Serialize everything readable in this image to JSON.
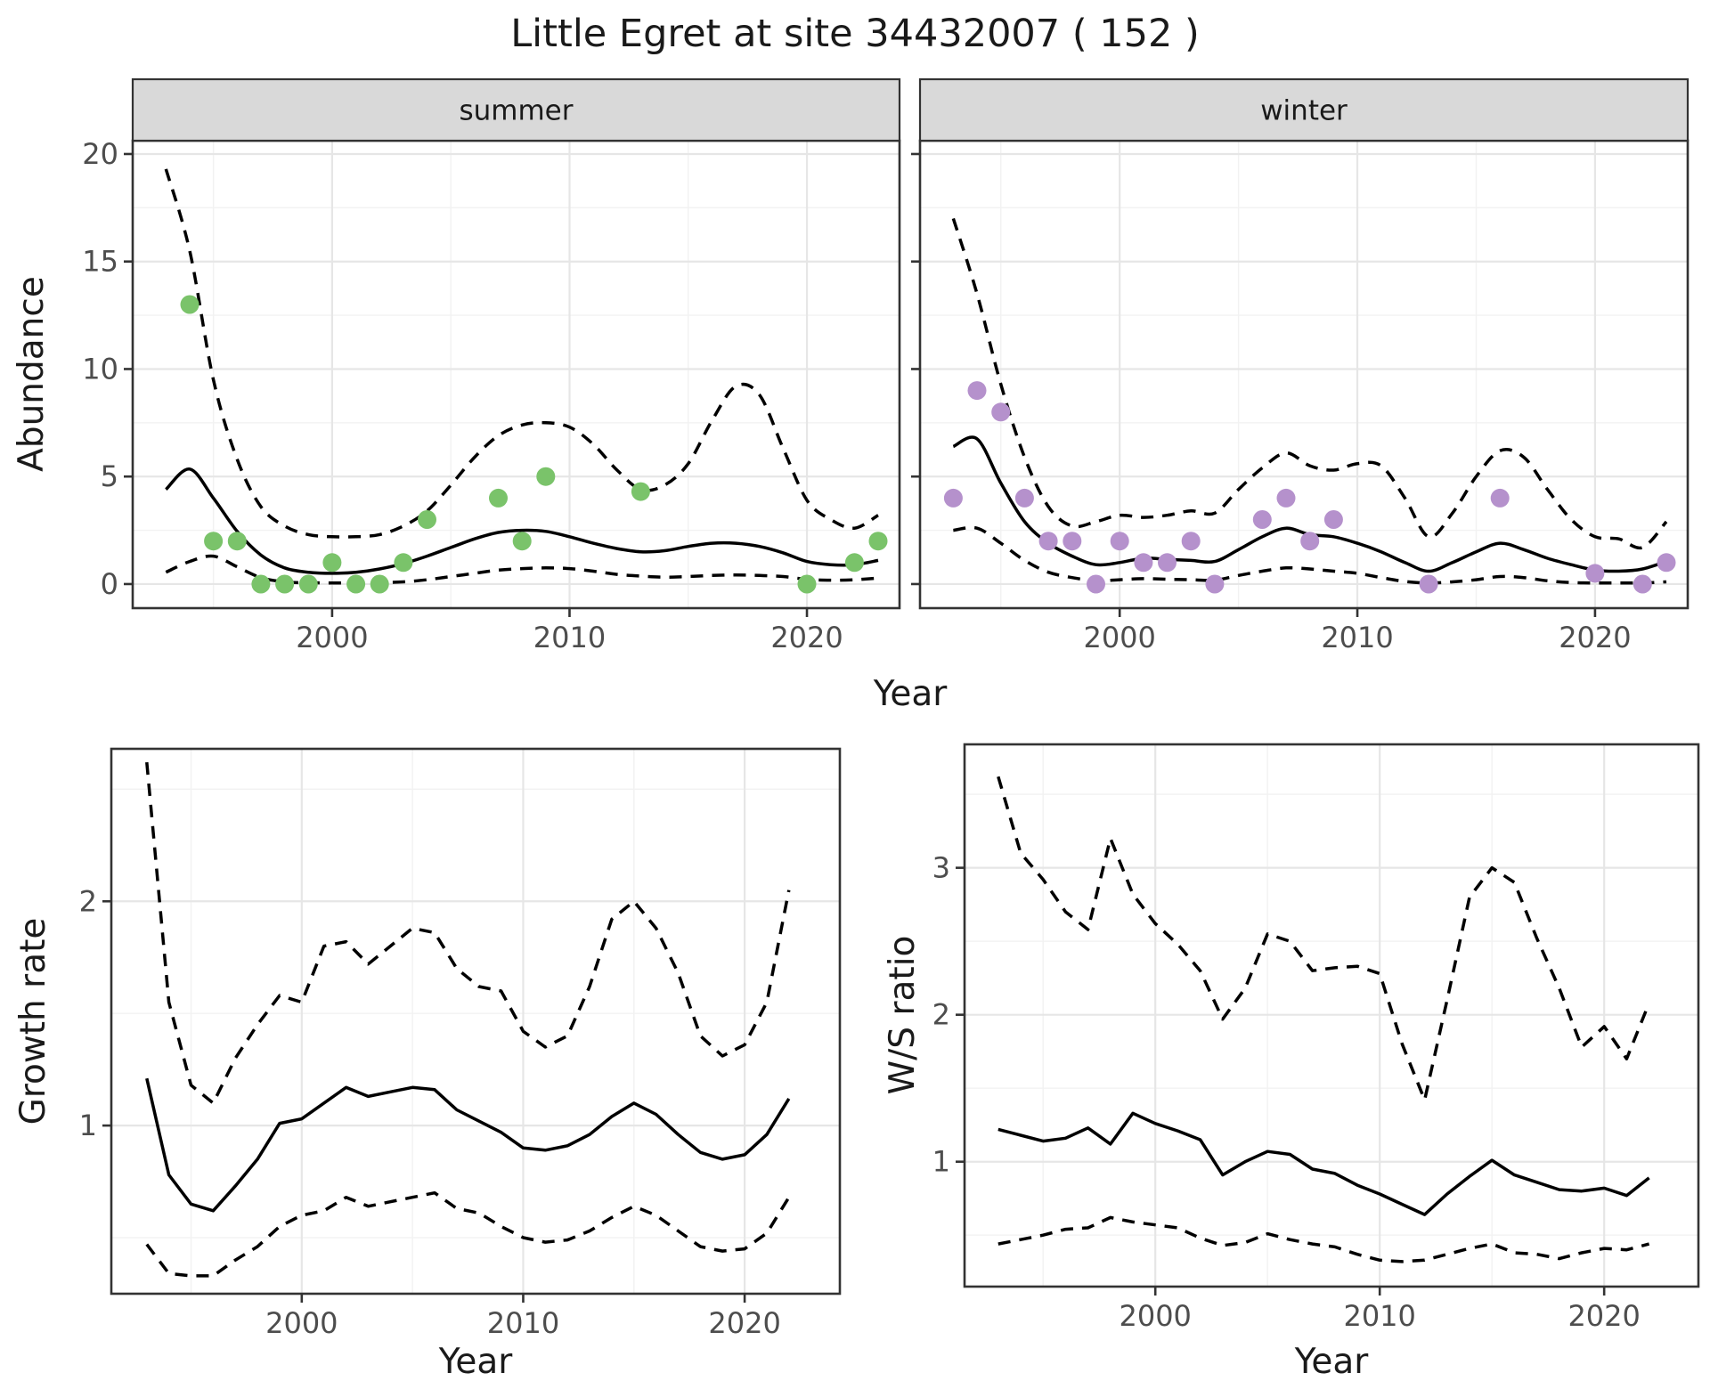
{
  "title": "Little Egret at site 34432007 ( 152 )",
  "figure_labels": {
    "x_top": "Year",
    "x_bottom_left": "Year",
    "x_bottom_right": "Year",
    "y_top": "Abundance",
    "y_bottom_left": "Growth rate",
    "y_bottom_right": "W/S ratio"
  },
  "colors": {
    "summer_point": "#7ac36a",
    "winter_point": "#b591cc",
    "line": "#000000",
    "strip_bg": "#d9d9d9",
    "strip_border": "#333333",
    "panel_border": "#333333",
    "panel_bg": "#ffffff",
    "grid_major": "#e6e6e6",
    "grid_minor": "#f2f2f2",
    "tick_mark": "#333333",
    "tick_label": "#4d4d4d",
    "text": "#1a1a1a"
  },
  "chart_data": [
    {
      "id": "abundance-summer",
      "type": "scatter",
      "panel": "summer",
      "facet_label": "summer",
      "xlabel": "Year",
      "ylabel": "Abundance",
      "xlim": [
        1991.6,
        2023.9
      ],
      "ylim": [
        -1.12,
        20.62
      ],
      "xticks": [
        2000,
        2010,
        2020
      ],
      "xticks_minor": [
        1995,
        2005,
        2015
      ],
      "yticks": [
        0,
        5,
        10,
        15,
        20
      ],
      "yticks_minor": [
        2.5,
        7.5,
        12.5,
        17.5
      ],
      "show_y_labels": true,
      "grid": true,
      "points": {
        "color_key": "summer_point",
        "x": [
          1994,
          1995,
          1996,
          1997,
          1998,
          1999,
          2000,
          2001,
          2002,
          2003,
          2004,
          2007,
          2008,
          2009,
          2013,
          2020,
          2022,
          2023
        ],
        "y": [
          13,
          2,
          2,
          0,
          0,
          0,
          1,
          0,
          0,
          1,
          3,
          4,
          2,
          5,
          4.3,
          0,
          1,
          2
        ]
      },
      "series": [
        {
          "name": "fit",
          "style": "solid",
          "smooth": true,
          "x": [
            1993,
            1994,
            1995,
            1996,
            1997,
            1998,
            1999,
            2000,
            2001,
            2002,
            2003,
            2004,
            2005,
            2006,
            2007,
            2008,
            2009,
            2010,
            2011,
            2012,
            2013,
            2014,
            2015,
            2016,
            2017,
            2018,
            2019,
            2020,
            2021,
            2022,
            2023
          ],
          "y": [
            4.4,
            5.35,
            4.0,
            2.45,
            1.35,
            0.75,
            0.55,
            0.5,
            0.55,
            0.7,
            0.95,
            1.3,
            1.7,
            2.1,
            2.4,
            2.5,
            2.45,
            2.2,
            1.9,
            1.65,
            1.5,
            1.55,
            1.75,
            1.9,
            1.9,
            1.75,
            1.45,
            1.05,
            0.9,
            0.9,
            1.1
          ]
        },
        {
          "name": "upper-ci",
          "style": "dashed",
          "smooth": true,
          "x": [
            1993,
            1994,
            1995,
            1996,
            1997,
            1998,
            1999,
            2000,
            2001,
            2002,
            2003,
            2004,
            2005,
            2006,
            2007,
            2008,
            2009,
            2010,
            2011,
            2012,
            2013,
            2014,
            2015,
            2016,
            2017,
            2018,
            2019,
            2020,
            2021,
            2022,
            2023
          ],
          "y": [
            19.3,
            15.5,
            9.5,
            5.8,
            3.6,
            2.7,
            2.3,
            2.2,
            2.2,
            2.3,
            2.7,
            3.4,
            4.6,
            5.9,
            6.9,
            7.4,
            7.5,
            7.3,
            6.5,
            5.3,
            4.4,
            4.6,
            5.6,
            7.6,
            9.2,
            8.8,
            6.3,
            3.9,
            3.0,
            2.6,
            3.2
          ]
        },
        {
          "name": "lower-ci",
          "style": "dashed",
          "smooth": true,
          "x": [
            1993,
            1994,
            1995,
            1996,
            1997,
            1998,
            1999,
            2000,
            2001,
            2002,
            2003,
            2004,
            2005,
            2006,
            2007,
            2008,
            2009,
            2010,
            2011,
            2012,
            2013,
            2014,
            2015,
            2016,
            2017,
            2018,
            2019,
            2020,
            2021,
            2022,
            2023
          ],
          "y": [
            0.55,
            1.05,
            1.3,
            0.8,
            0.3,
            0.1,
            0.06,
            0.05,
            0.05,
            0.07,
            0.1,
            0.2,
            0.35,
            0.5,
            0.65,
            0.72,
            0.75,
            0.72,
            0.6,
            0.45,
            0.37,
            0.32,
            0.35,
            0.4,
            0.42,
            0.4,
            0.35,
            0.22,
            0.18,
            0.2,
            0.28
          ]
        }
      ]
    },
    {
      "id": "abundance-winter",
      "type": "scatter",
      "panel": "winter",
      "facet_label": "winter",
      "xlabel": "Year",
      "ylabel": "Abundance",
      "xlim": [
        1991.6,
        2023.9
      ],
      "ylim": [
        -1.12,
        20.62
      ],
      "xticks": [
        2000,
        2010,
        2020
      ],
      "xticks_minor": [
        1995,
        2005,
        2015
      ],
      "yticks": [
        0,
        5,
        10,
        15,
        20
      ],
      "yticks_minor": [
        2.5,
        7.5,
        12.5,
        17.5
      ],
      "show_y_labels": false,
      "grid": true,
      "points": {
        "color_key": "winter_point",
        "x": [
          1993,
          1994,
          1995,
          1996,
          1997,
          1998,
          1999,
          2000,
          2001,
          2002,
          2003,
          2004,
          2006,
          2007,
          2008,
          2009,
          2013,
          2016,
          2020,
          2022,
          2023
        ],
        "y": [
          4,
          9,
          8,
          4,
          2,
          2,
          0,
          2,
          1,
          1,
          2,
          0,
          3,
          4,
          2,
          3,
          0,
          4,
          0.5,
          0,
          1
        ]
      },
      "series": [
        {
          "name": "fit",
          "style": "solid",
          "smooth": true,
          "x": [
            1993,
            1994,
            1995,
            1996,
            1997,
            1998,
            1999,
            2000,
            2001,
            2002,
            2003,
            2004,
            2005,
            2006,
            2007,
            2008,
            2009,
            2010,
            2011,
            2012,
            2013,
            2014,
            2015,
            2016,
            2017,
            2018,
            2019,
            2020,
            2021,
            2022,
            2023
          ],
          "y": [
            6.4,
            6.75,
            4.7,
            2.9,
            1.9,
            1.3,
            0.9,
            1.0,
            1.2,
            1.15,
            1.1,
            1.05,
            1.6,
            2.2,
            2.6,
            2.3,
            2.2,
            1.9,
            1.5,
            1.0,
            0.6,
            1.0,
            1.5,
            1.9,
            1.6,
            1.2,
            0.9,
            0.65,
            0.6,
            0.7,
            1.05
          ]
        },
        {
          "name": "upper-ci",
          "style": "dashed",
          "smooth": true,
          "x": [
            1993,
            1994,
            1995,
            1996,
            1997,
            1998,
            1999,
            2000,
            2001,
            2002,
            2003,
            2004,
            2005,
            2006,
            2007,
            2008,
            2009,
            2010,
            2011,
            2012,
            2013,
            2014,
            2015,
            2016,
            2017,
            2018,
            2019,
            2020,
            2021,
            2022,
            2023
          ],
          "y": [
            17.0,
            13.5,
            9.3,
            5.9,
            3.6,
            2.7,
            2.9,
            3.2,
            3.1,
            3.2,
            3.4,
            3.3,
            4.4,
            5.4,
            6.1,
            5.5,
            5.3,
            5.6,
            5.5,
            4.0,
            2.2,
            3.3,
            5.0,
            6.2,
            5.9,
            4.4,
            3.0,
            2.2,
            2.1,
            1.7,
            2.9
          ]
        },
        {
          "name": "lower-ci",
          "style": "dashed",
          "smooth": true,
          "x": [
            1993,
            1994,
            1995,
            1996,
            1997,
            1998,
            1999,
            2000,
            2001,
            2002,
            2003,
            2004,
            2005,
            2006,
            2007,
            2008,
            2009,
            2010,
            2011,
            2012,
            2013,
            2014,
            2015,
            2016,
            2017,
            2018,
            2019,
            2020,
            2021,
            2022,
            2023
          ],
          "y": [
            2.5,
            2.6,
            1.9,
            1.1,
            0.55,
            0.3,
            0.15,
            0.2,
            0.25,
            0.22,
            0.2,
            0.18,
            0.4,
            0.6,
            0.75,
            0.7,
            0.6,
            0.5,
            0.3,
            0.12,
            0.05,
            0.1,
            0.2,
            0.35,
            0.3,
            0.15,
            0.07,
            0.05,
            0.05,
            0.05,
            0.1
          ]
        }
      ]
    },
    {
      "id": "growth-rate",
      "type": "line",
      "panel": "growth",
      "facet_label": null,
      "xlabel": "Year",
      "ylabel": "Growth rate",
      "xlim": [
        1991.4,
        2024.3
      ],
      "ylim": [
        0.25,
        2.68
      ],
      "xticks": [
        2000,
        2010,
        2020
      ],
      "xticks_minor": [
        1995,
        2005,
        2015
      ],
      "yticks": [
        1,
        2
      ],
      "yticks_minor": [
        0.5,
        1.5,
        2.5
      ],
      "show_y_labels": true,
      "grid": true,
      "points": null,
      "series": [
        {
          "name": "fit",
          "style": "solid",
          "smooth": false,
          "x": [
            1993,
            1994,
            1995,
            1996,
            1997,
            1998,
            1999,
            2000,
            2001,
            2002,
            2003,
            2004,
            2005,
            2006,
            2007,
            2008,
            2009,
            2010,
            2011,
            2012,
            2013,
            2014,
            2015,
            2016,
            2017,
            2018,
            2019,
            2020,
            2021,
            2022
          ],
          "y": [
            1.21,
            0.78,
            0.65,
            0.62,
            0.73,
            0.85,
            1.01,
            1.03,
            1.1,
            1.17,
            1.13,
            1.15,
            1.17,
            1.16,
            1.07,
            1.02,
            0.97,
            0.9,
            0.89,
            0.91,
            0.96,
            1.04,
            1.1,
            1.05,
            0.96,
            0.88,
            0.85,
            0.87,
            0.96,
            1.12
          ]
        },
        {
          "name": "upper-ci",
          "style": "dashed",
          "smooth": false,
          "x": [
            1993,
            1994,
            1995,
            1996,
            1997,
            1998,
            1999,
            2000,
            2001,
            2002,
            2003,
            2004,
            2005,
            2006,
            2007,
            2008,
            2009,
            2010,
            2011,
            2012,
            2013,
            2014,
            2015,
            2016,
            2017,
            2018,
            2019,
            2020,
            2021,
            2022
          ],
          "y": [
            2.62,
            1.55,
            1.18,
            1.1,
            1.3,
            1.45,
            1.58,
            1.55,
            1.8,
            1.82,
            1.72,
            1.8,
            1.88,
            1.86,
            1.7,
            1.62,
            1.6,
            1.42,
            1.35,
            1.4,
            1.62,
            1.92,
            2.0,
            1.88,
            1.68,
            1.4,
            1.31,
            1.36,
            1.55,
            2.05
          ]
        },
        {
          "name": "lower-ci",
          "style": "dashed",
          "smooth": false,
          "x": [
            1993,
            1994,
            1995,
            1996,
            1997,
            1998,
            1999,
            2000,
            2001,
            2002,
            2003,
            2004,
            2005,
            2006,
            2007,
            2008,
            2009,
            2010,
            2011,
            2012,
            2013,
            2014,
            2015,
            2016,
            2017,
            2018,
            2019,
            2020,
            2021,
            2022
          ],
          "y": [
            0.47,
            0.34,
            0.33,
            0.33,
            0.4,
            0.46,
            0.55,
            0.6,
            0.62,
            0.68,
            0.64,
            0.66,
            0.68,
            0.7,
            0.63,
            0.61,
            0.55,
            0.5,
            0.48,
            0.49,
            0.53,
            0.59,
            0.64,
            0.6,
            0.53,
            0.46,
            0.44,
            0.45,
            0.52,
            0.68
          ]
        }
      ]
    },
    {
      "id": "ws-ratio",
      "type": "line",
      "panel": "ws",
      "facet_label": null,
      "xlabel": "Year",
      "ylabel": "W/S ratio",
      "xlim": [
        1991.5,
        2024.2
      ],
      "ylim": [
        0.15,
        3.84
      ],
      "xticks": [
        2000,
        2010,
        2020
      ],
      "xticks_minor": [
        1995,
        2005,
        2015
      ],
      "yticks": [
        1,
        2,
        3
      ],
      "yticks_minor": [
        0.5,
        1.5,
        2.5,
        3.5
      ],
      "show_y_labels": true,
      "grid": true,
      "points": null,
      "series": [
        {
          "name": "fit",
          "style": "solid",
          "smooth": false,
          "x": [
            1993,
            1994,
            1995,
            1996,
            1997,
            1998,
            1999,
            2000,
            2001,
            2002,
            2003,
            2004,
            2005,
            2006,
            2007,
            2008,
            2009,
            2010,
            2011,
            2012,
            2013,
            2014,
            2015,
            2016,
            2017,
            2018,
            2019,
            2020,
            2021,
            2022
          ],
          "y": [
            1.22,
            1.18,
            1.14,
            1.16,
            1.23,
            1.12,
            1.33,
            1.26,
            1.21,
            1.15,
            0.91,
            1.0,
            1.07,
            1.05,
            0.95,
            0.92,
            0.84,
            0.78,
            0.71,
            0.64,
            0.78,
            0.9,
            1.01,
            0.91,
            0.86,
            0.81,
            0.8,
            0.82,
            0.77,
            0.89
          ]
        },
        {
          "name": "upper-ci",
          "style": "dashed",
          "smooth": false,
          "x": [
            1993,
            1994,
            1995,
            1996,
            1997,
            1998,
            1999,
            2000,
            2001,
            2002,
            2003,
            2004,
            2005,
            2006,
            2007,
            2008,
            2009,
            2010,
            2011,
            2012,
            2013,
            2014,
            2015,
            2016,
            2017,
            2018,
            2019,
            2020,
            2021,
            2022
          ],
          "y": [
            3.62,
            3.1,
            2.92,
            2.7,
            2.58,
            3.2,
            2.82,
            2.62,
            2.48,
            2.3,
            1.97,
            2.18,
            2.55,
            2.5,
            2.3,
            2.32,
            2.33,
            2.28,
            1.8,
            1.42,
            2.1,
            2.8,
            3.0,
            2.9,
            2.52,
            2.18,
            1.78,
            1.92,
            1.7,
            2.08
          ]
        },
        {
          "name": "lower-ci",
          "style": "dashed",
          "smooth": false,
          "x": [
            1993,
            1994,
            1995,
            1996,
            1997,
            1998,
            1999,
            2000,
            2001,
            2002,
            2003,
            2004,
            2005,
            2006,
            2007,
            2008,
            2009,
            2010,
            2011,
            2012,
            2013,
            2014,
            2015,
            2016,
            2017,
            2018,
            2019,
            2020,
            2021,
            2022
          ],
          "y": [
            0.44,
            0.47,
            0.5,
            0.54,
            0.55,
            0.62,
            0.59,
            0.57,
            0.55,
            0.48,
            0.43,
            0.45,
            0.51,
            0.47,
            0.44,
            0.42,
            0.37,
            0.33,
            0.32,
            0.33,
            0.37,
            0.41,
            0.44,
            0.38,
            0.37,
            0.34,
            0.38,
            0.41,
            0.4,
            0.44
          ]
        }
      ]
    }
  ]
}
